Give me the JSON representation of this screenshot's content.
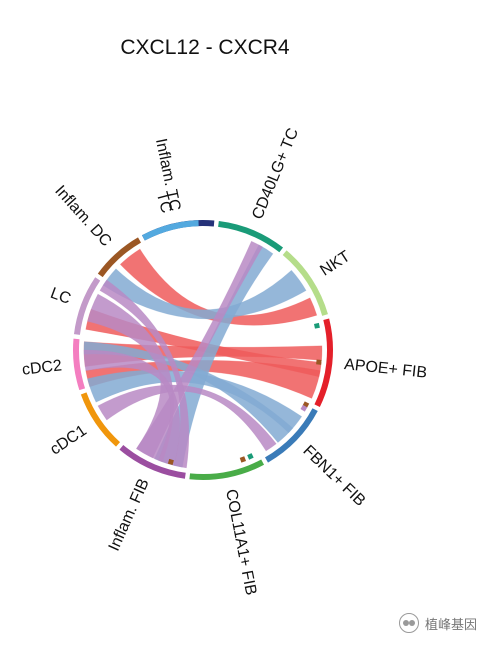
{
  "title": "CXCL12 - CXCR4",
  "segments": [
    {
      "id": "inflam_tc",
      "label": "Inflam. TC",
      "color": "#253279",
      "start": -28,
      "end": 5
    },
    {
      "id": "cd40lg_tc",
      "label": "CD40LG+ TC",
      "color": "#1a9b78",
      "start": 7,
      "end": 38
    },
    {
      "id": "nkt",
      "label": "NKT",
      "color": "#b5dd8a",
      "start": 40,
      "end": 74
    },
    {
      "id": "apoe_fib",
      "label": "APOE+ FIB",
      "color": "#e4202a",
      "start": 76,
      "end": 116
    },
    {
      "id": "fbn1_fib",
      "label": "FBN1+ FIB",
      "color": "#3a7bb8",
      "start": 118,
      "end": 150
    },
    {
      "id": "col11a1_fib",
      "label": "COL11A1+ FIB",
      "color": "#49ac48",
      "start": 152,
      "end": 186
    },
    {
      "id": "inflam_fib",
      "label": "Inflam. FIB",
      "color": "#9b4ea0",
      "start": 188,
      "end": 220
    },
    {
      "id": "cdc1",
      "label": "cDC1",
      "color": "#f0960c",
      "start": 222,
      "end": 250
    },
    {
      "id": "cdc2",
      "label": "cDC2",
      "color": "#f47ec0",
      "start": 252,
      "end": 275
    },
    {
      "id": "lc",
      "label": "LC",
      "color": "#c39ac9",
      "start": 277,
      "end": 304
    },
    {
      "id": "inflam_dc",
      "label": "Inflam. DC",
      "color": "#9b5724",
      "start": 306,
      "end": 330
    },
    {
      "id": "tc",
      "label": "TC",
      "color": "#53a9df",
      "start": 332,
      "end": 358
    }
  ],
  "links": [
    {
      "a": [
        64,
        73
      ],
      "b": [
        -44,
        -32
      ],
      "color": "#ef5a5a"
    },
    {
      "a": [
        96,
        103
      ],
      "b": [
        -80,
        -70
      ],
      "color": "#ef5a5a"
    },
    {
      "a": [
        88,
        95
      ],
      "b": [
        -98,
        -86
      ],
      "color": "#ef5a5a"
    },
    {
      "a": [
        100,
        114
      ],
      "b": [
        -108,
        -100
      ],
      "color": "#ef5a5a"
    },
    {
      "a": [
        48,
        60
      ],
      "b": [
        -57,
        -47
      ],
      "color": "#82aad2"
    },
    {
      "a": [
        131,
        141
      ],
      "b": [
        -92,
        -86
      ],
      "color": "#82aad2"
    },
    {
      "a": [
        124,
        134
      ],
      "b": [
        -116,
        -104
      ],
      "color": "#82aad2"
    },
    {
      "a": [
        28,
        36
      ],
      "b": [
        190,
        204
      ],
      "color": "#82aad2"
    },
    {
      "a": [
        24,
        30
      ],
      "b": [
        205,
        214
      ],
      "color": "#b98ac4"
    },
    {
      "a": [
        142,
        148
      ],
      "b": [
        -126,
        -118
      ],
      "color": "#b98ac4"
    },
    {
      "a": [
        200,
        214
      ],
      "b": [
        -76,
        -62
      ],
      "color": "#b98ac4"
    },
    {
      "a": [
        194,
        202
      ],
      "b": [
        -100,
        -90
      ],
      "color": "#b98ac4"
    },
    {
      "a": [
        188,
        194
      ],
      "b": [
        -60,
        -54
      ],
      "color": "#b98ac4"
    }
  ],
  "small_ticks": [
    {
      "angle": 78,
      "color": "#1a9b78"
    },
    {
      "angle": 96,
      "color": "#9b5724"
    },
    {
      "angle": 118,
      "color": "#9b5724"
    },
    {
      "angle": 120,
      "color": "#b98ac4"
    },
    {
      "angle": 156,
      "color": "#1a9b78"
    },
    {
      "angle": 160,
      "color": "#9b5724"
    },
    {
      "angle": 196,
      "color": "#9b5724"
    }
  ],
  "watermark": "植峰基因"
}
